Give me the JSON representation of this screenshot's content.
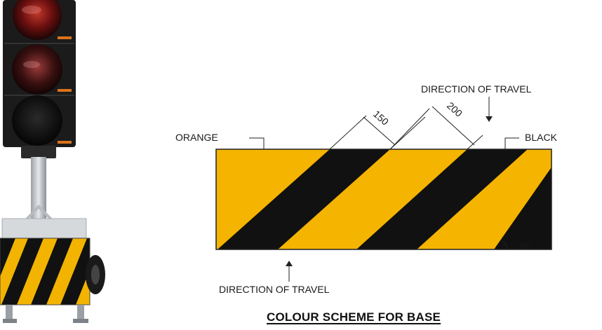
{
  "diagram": {
    "caption": "COLOUR SCHEME FOR BASE",
    "labels": {
      "orange": "ORANGE",
      "black": "BLACK",
      "direction_top": "DIRECTION OF TRAVEL",
      "direction_bottom": "DIRECTION OF TRAVEL"
    },
    "dimensions": {
      "black_stripe_width": "150",
      "orange_stripe_width": "200",
      "angle": "45°"
    },
    "colors": {
      "orange": "#f5b400",
      "black": "#111111"
    }
  },
  "photo": {
    "subject": "portable-traffic-signal",
    "lamps": [
      "red",
      "amber",
      "green"
    ]
  }
}
